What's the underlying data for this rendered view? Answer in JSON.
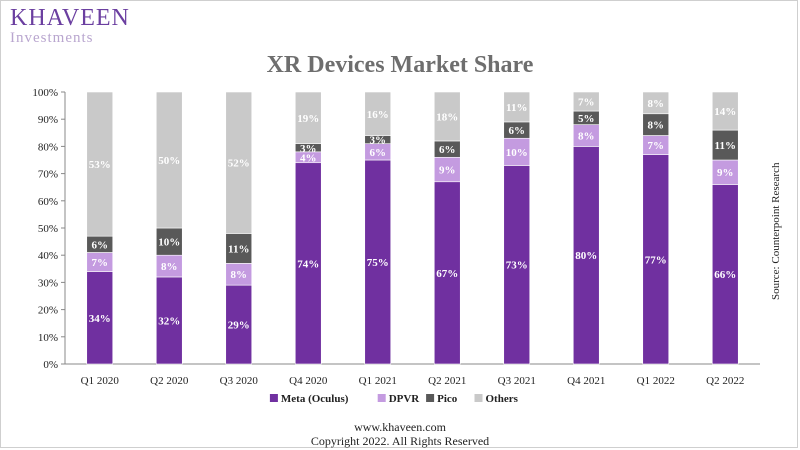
{
  "brand": {
    "name": "KHAVEEN",
    "sub": "Investments"
  },
  "chart_data": {
    "type": "bar",
    "stacked": true,
    "title": "XR Devices Market Share",
    "categories": [
      "Q1 2020",
      "Q2 2020",
      "Q3 2020",
      "Q4 2020",
      "Q1 2021",
      "Q2 2021",
      "Q3 2021",
      "Q4 2021",
      "Q1 2022",
      "Q2 2022"
    ],
    "series": [
      {
        "name": "Meta (Oculus)",
        "values": [
          34,
          32,
          29,
          74,
          75,
          67,
          73,
          80,
          77,
          66
        ],
        "labels": [
          "34%",
          "32%",
          "29%",
          "74%",
          "75%",
          "67%",
          "73%",
          "80%",
          "77%",
          "66%"
        ]
      },
      {
        "name": "DPVR",
        "values": [
          7,
          8,
          8,
          4,
          6,
          9,
          10,
          8,
          7,
          9
        ],
        "labels": [
          "7%",
          "8%",
          "8%",
          "4%",
          "6%",
          "9%",
          "10%",
          "8%",
          "7%",
          "9%"
        ]
      },
      {
        "name": "Pico",
        "values": [
          6,
          10,
          11,
          3,
          3,
          6,
          6,
          5,
          8,
          11
        ],
        "labels": [
          "6%",
          "10%",
          "11%",
          "3%",
          "3%",
          "6%",
          "6%",
          "5%",
          "8%",
          "11%"
        ]
      },
      {
        "name": "Others",
        "values": [
          53,
          50,
          52,
          19,
          16,
          18,
          11,
          7,
          8,
          14
        ],
        "labels": [
          "53%",
          "50%",
          "52%",
          "19%",
          "16%",
          "18%",
          "11%",
          "7%",
          "8%",
          "14%"
        ]
      }
    ],
    "ylim": [
      0,
      100
    ],
    "yticks": [
      "0%",
      "10%",
      "20%",
      "30%",
      "40%",
      "50%",
      "60%",
      "70%",
      "80%",
      "90%",
      "100%"
    ],
    "grid": false,
    "legend_position": "bottom",
    "colors": {
      "Meta (Oculus)": "#7030a0",
      "DPVR": "#c49be0",
      "Pico": "#595959",
      "Others": "#c9c9c9"
    },
    "label_colors": {
      "Meta (Oculus)": "#ffffff",
      "DPVR": "#ffffff",
      "Pico": "#ffffff",
      "Others": "#ffffff"
    }
  },
  "source": "Source: Counterpoint Research",
  "footer": {
    "url": "www.khaveen.com",
    "copyright": "Copyright 2022. All Rights Reserved"
  }
}
